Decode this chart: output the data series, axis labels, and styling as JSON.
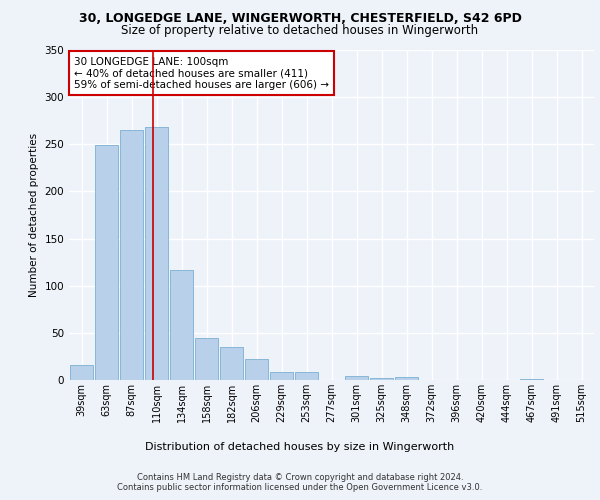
{
  "title1": "30, LONGEDGE LANE, WINGERWORTH, CHESTERFIELD, S42 6PD",
  "title2": "Size of property relative to detached houses in Wingerworth",
  "xlabel": "Distribution of detached houses by size in Wingerworth",
  "ylabel": "Number of detached properties",
  "categories": [
    "39sqm",
    "63sqm",
    "87sqm",
    "110sqm",
    "134sqm",
    "158sqm",
    "182sqm",
    "206sqm",
    "229sqm",
    "253sqm",
    "277sqm",
    "301sqm",
    "325sqm",
    "348sqm",
    "372sqm",
    "396sqm",
    "420sqm",
    "444sqm",
    "467sqm",
    "491sqm",
    "515sqm"
  ],
  "values": [
    16,
    249,
    265,
    268,
    117,
    45,
    35,
    22,
    9,
    9,
    0,
    4,
    2,
    3,
    0,
    0,
    0,
    0,
    1,
    0,
    0
  ],
  "bar_color": "#b8d0ea",
  "bar_edge_color": "#7aafd4",
  "vline_x": 2.85,
  "vline_color": "#cc0000",
  "annotation_text": "30 LONGEDGE LANE: 100sqm\n← 40% of detached houses are smaller (411)\n59% of semi-detached houses are larger (606) →",
  "annotation_box_color": "#ffffff",
  "annotation_box_edge": "#cc0000",
  "ylim": [
    0,
    350
  ],
  "yticks": [
    0,
    50,
    100,
    150,
    200,
    250,
    300,
    350
  ],
  "footer1": "Contains HM Land Registry data © Crown copyright and database right 2024.",
  "footer2": "Contains public sector information licensed under the Open Government Licence v3.0.",
  "bg_color": "#eef2f9",
  "plot_bg_color": "#eef2f9"
}
